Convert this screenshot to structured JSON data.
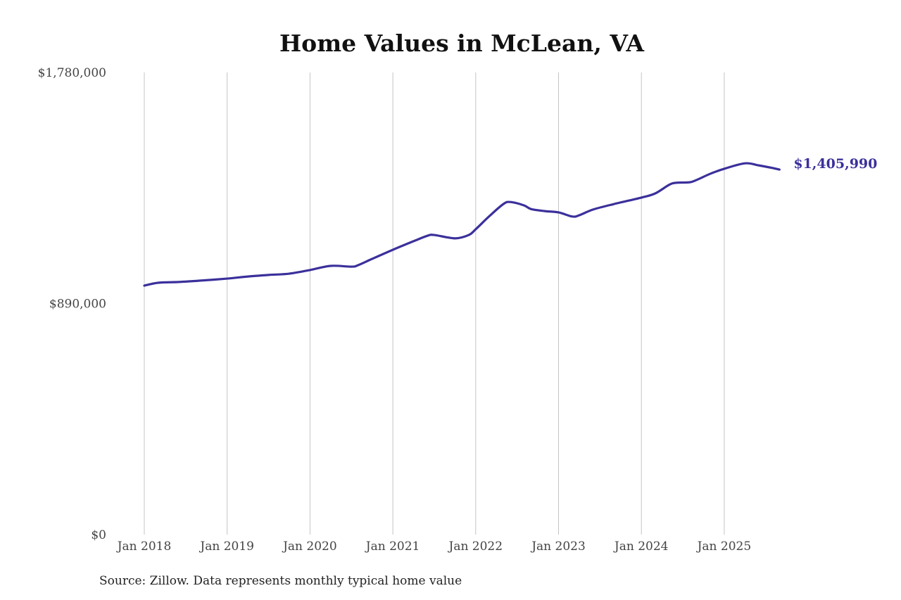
{
  "chart_data": {
    "type": "line",
    "title": "Home Values in McLean, VA",
    "xlabel": "",
    "ylabel": "",
    "ylim": [
      0,
      1780000
    ],
    "y_ticks": [
      "$0",
      "$890,000",
      "$1,780,000"
    ],
    "y_tick_values": [
      0,
      890000,
      1780000
    ],
    "x_ticks": [
      "Jan 2018",
      "Jan 2019",
      "Jan 2020",
      "Jan 2021",
      "Jan 2022",
      "Jan 2023",
      "Jan 2024",
      "Jan 2025"
    ],
    "x_tick_dates": [
      "2018-01",
      "2019-01",
      "2020-01",
      "2021-01",
      "2022-01",
      "2023-01",
      "2024-01",
      "2025-01"
    ],
    "grid": "vertical",
    "line_color": "#3b309b",
    "end_label": "$1,405,990",
    "series": [
      {
        "x": [
          "2018-01",
          "2018-03",
          "2018-06",
          "2018-09",
          "2019-01",
          "2019-04",
          "2019-07",
          "2019-10",
          "2020-01",
          "2020-04",
          "2020-07",
          "2020-08",
          "2020-10",
          "2021-01",
          "2021-04",
          "2021-06",
          "2021-07",
          "2021-10",
          "2021-12",
          "2022-01",
          "2022-03",
          "2022-05",
          "2022-06",
          "2022-08",
          "2022-09",
          "2022-11",
          "2023-01",
          "2023-03",
          "2023-04",
          "2023-06",
          "2023-09",
          "2024-01",
          "2024-03",
          "2024-05",
          "2024-06",
          "2024-08",
          "2024-09",
          "2024-11",
          "2025-01",
          "2025-04",
          "2025-06",
          "2025-08",
          "2025-09"
        ],
        "values": [
          959000,
          970000,
          973000,
          978000,
          986000,
          994000,
          1000000,
          1005000,
          1019000,
          1035000,
          1032000,
          1038000,
          1062000,
          1097000,
          1130000,
          1151000,
          1154000,
          1141000,
          1154000,
          1176000,
          1227000,
          1273000,
          1281000,
          1268000,
          1254000,
          1246000,
          1241000,
          1225000,
          1230000,
          1252000,
          1273000,
          1298000,
          1314000,
          1347000,
          1355000,
          1357000,
          1366000,
          1390000,
          1409000,
          1430000,
          1422000,
          1412000,
          1405990
        ]
      }
    ]
  },
  "source": "Source: Zillow. Data represents monthly typical home value"
}
